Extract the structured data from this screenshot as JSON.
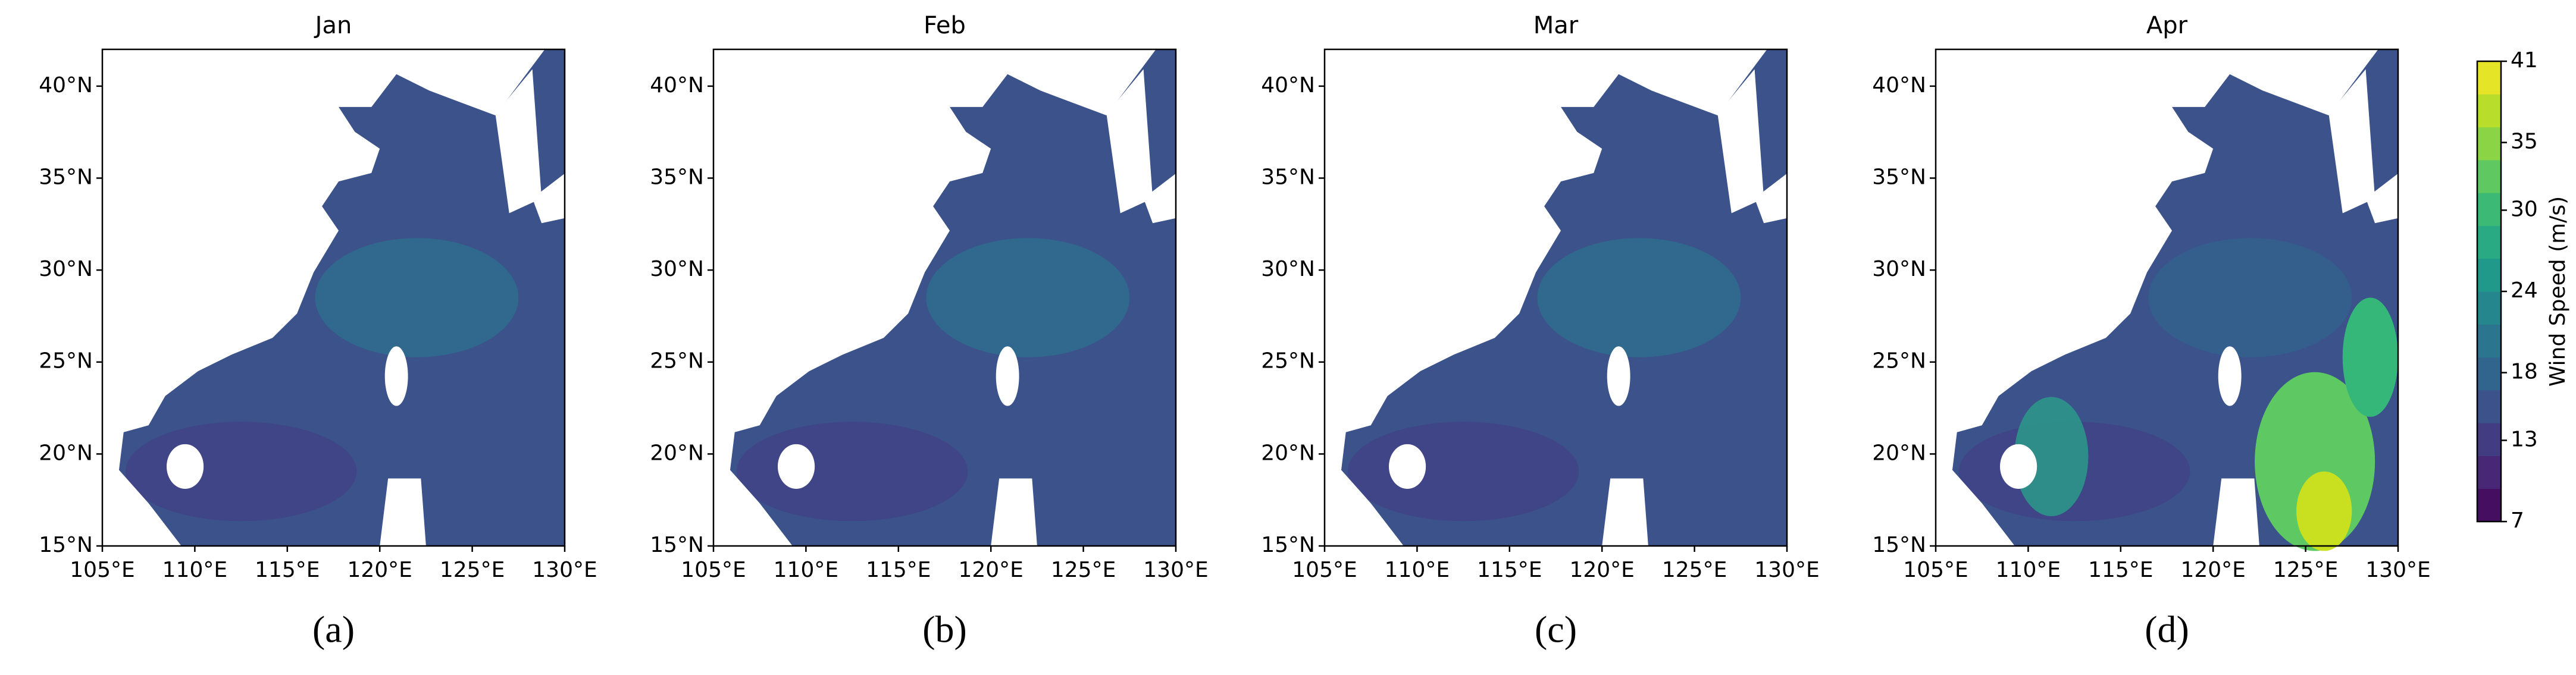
{
  "chart_data": [
    {
      "type": "map",
      "title": "Jan",
      "panel_label": "(a)",
      "xlim": [
        105,
        130
      ],
      "ylim": [
        15,
        42
      ],
      "xticks": [
        {
          "value": 105,
          "label": "105°E"
        },
        {
          "value": 110,
          "label": "110°E"
        },
        {
          "value": 115,
          "label": "115°E"
        },
        {
          "value": 120,
          "label": "120°E"
        },
        {
          "value": 125,
          "label": "125°E"
        },
        {
          "value": 130,
          "label": "130°E"
        }
      ],
      "yticks": [
        {
          "value": 15,
          "label": "15°N"
        },
        {
          "value": 20,
          "label": "20°N"
        },
        {
          "value": 25,
          "label": "25°N"
        },
        {
          "value": 30,
          "label": "30°N"
        },
        {
          "value": 35,
          "label": "35°N"
        },
        {
          "value": 40,
          "label": "40°N"
        }
      ]
    },
    {
      "type": "map",
      "title": "Feb",
      "panel_label": "(b)",
      "xlim": [
        105,
        130
      ],
      "ylim": [
        15,
        42
      ],
      "xticks": [
        {
          "value": 105,
          "label": "105°E"
        },
        {
          "value": 110,
          "label": "110°E"
        },
        {
          "value": 115,
          "label": "115°E"
        },
        {
          "value": 120,
          "label": "120°E"
        },
        {
          "value": 125,
          "label": "125°E"
        },
        {
          "value": 130,
          "label": "130°E"
        }
      ],
      "yticks": [
        {
          "value": 15,
          "label": "15°N"
        },
        {
          "value": 20,
          "label": "20°N"
        },
        {
          "value": 25,
          "label": "25°N"
        },
        {
          "value": 30,
          "label": "30°N"
        },
        {
          "value": 35,
          "label": "35°N"
        },
        {
          "value": 40,
          "label": "40°N"
        }
      ]
    },
    {
      "type": "map",
      "title": "Mar",
      "panel_label": "(c)",
      "xlim": [
        105,
        130
      ],
      "ylim": [
        15,
        42
      ],
      "xticks": [
        {
          "value": 105,
          "label": "105°E"
        },
        {
          "value": 110,
          "label": "110°E"
        },
        {
          "value": 115,
          "label": "115°E"
        },
        {
          "value": 120,
          "label": "120°E"
        },
        {
          "value": 125,
          "label": "125°E"
        },
        {
          "value": 130,
          "label": "130°E"
        }
      ],
      "yticks": [
        {
          "value": 15,
          "label": "15°N"
        },
        {
          "value": 20,
          "label": "20°N"
        },
        {
          "value": 25,
          "label": "25°N"
        },
        {
          "value": 30,
          "label": "30°N"
        },
        {
          "value": 35,
          "label": "35°N"
        },
        {
          "value": 40,
          "label": "40°N"
        }
      ]
    },
    {
      "type": "map",
      "title": "Apr",
      "panel_label": "(d)",
      "xlim": [
        105,
        130
      ],
      "ylim": [
        15,
        42
      ],
      "xticks": [
        {
          "value": 105,
          "label": "105°E"
        },
        {
          "value": 110,
          "label": "110°E"
        },
        {
          "value": 115,
          "label": "115°E"
        },
        {
          "value": 120,
          "label": "120°E"
        },
        {
          "value": 125,
          "label": "125°E"
        },
        {
          "value": 130,
          "label": "130°E"
        }
      ],
      "yticks": [
        {
          "value": 15,
          "label": "15°N"
        },
        {
          "value": 20,
          "label": "20°N"
        },
        {
          "value": 25,
          "label": "25°N"
        },
        {
          "value": 30,
          "label": "30°N"
        },
        {
          "value": 35,
          "label": "35°N"
        },
        {
          "value": 40,
          "label": "40°N"
        }
      ]
    },
    {
      "type": "colorbar",
      "label": "Wind Speed (m/s)",
      "colormap": "viridis",
      "ylim": [
        7,
        41
      ],
      "yticks": [
        7,
        13,
        18,
        24,
        30,
        35,
        41
      ]
    }
  ]
}
